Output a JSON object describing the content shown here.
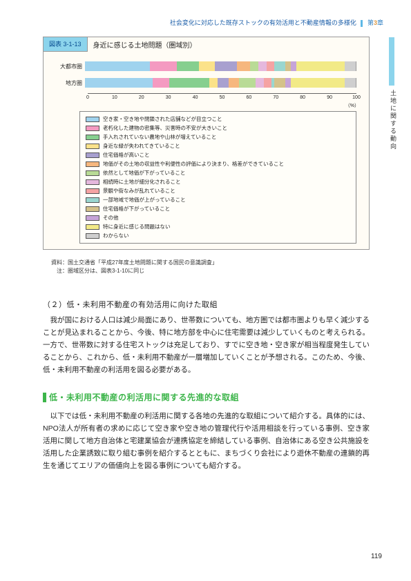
{
  "header": {
    "text": "社会変化に対応した既存ストックの有効活用と不動産情報の多様化",
    "chapter_prefix": "第",
    "chapter_num": "3",
    "chapter_suffix": "章"
  },
  "side_tab": "土地に関する動向",
  "figure": {
    "num": "図表 3-1-13",
    "title": "身近に感じる土地問題（圏域別）",
    "categories": [
      "大都市圏",
      "地方圏"
    ],
    "series": [
      {
        "label": "空き家・空き地や閉鎖された店舗などが目立つこと",
        "color": "#9fd3ee",
        "v": [
          24,
          25
        ]
      },
      {
        "label": "老朽化した建物の密集等、災害時の不安が大きいこと",
        "color": "#f49ac1",
        "v": [
          10,
          6
        ]
      },
      {
        "label": "手入れされていない農地や山林が増えていること",
        "color": "#86cf8f",
        "v": [
          8,
          15
        ]
      },
      {
        "label": "身近な緑が失われてきていること",
        "color": "#fbe28a",
        "v": [
          6,
          3
        ]
      },
      {
        "label": "住宅価格が高いこと",
        "color": "#a8a0cf",
        "v": [
          8,
          4
        ]
      },
      {
        "label": "地価がその土地の収益性や利便性の評価により決まり、格差ができていること",
        "color": "#f6b77e",
        "v": [
          5,
          4
        ]
      },
      {
        "label": "依然として地価が下がっていること",
        "color": "#b9db96",
        "v": [
          3,
          6
        ]
      },
      {
        "label": "相続時に土地が細分化されること",
        "color": "#e5b8dd",
        "v": [
          3,
          3
        ]
      },
      {
        "label": "景観や街なみが乱れていること",
        "color": "#f5a3a3",
        "v": [
          3,
          3
        ]
      },
      {
        "label": "一部地域で地価が上がっていること",
        "color": "#9ad6cf",
        "v": [
          4,
          1
        ]
      },
      {
        "label": "住宅価格が下がっていること",
        "color": "#d4c28a",
        "v": [
          2,
          4
        ]
      },
      {
        "label": "その他",
        "color": "#c6a4d8",
        "v": [
          2,
          2
        ]
      },
      {
        "label": "特に身近に感じる問題はない",
        "color": "#f2ea87",
        "v": [
          18,
          20
        ]
      },
      {
        "label": "わからない",
        "color": "#cfcfcf",
        "v": [
          4,
          4
        ]
      }
    ],
    "ticks": [
      0,
      10,
      20,
      30,
      40,
      50,
      60,
      70,
      80,
      90,
      100
    ],
    "unit": "（%）"
  },
  "source": {
    "l1": "資料：国土交通省「平成27年度土地問題に関する国民の意識調査」",
    "l2": "　注：圏域区分は、図表3-1-10に同じ"
  },
  "subhead": "（２）低・未利用不動産の有効活用に向けた取組",
  "para1": "我が国における人口は減少局面にあり、世帯数についても、地方圏では都市圏よりも早く減少することが見込まれることから、今後、特に地方部を中心に住宅需要は減少していくものと考えられる。一方で、世帯数に対する住宅ストックは充足しており、すでに空き地・空き家が相当程度発生していることから、これから、低・未利用不動産が一層増加していくことが予想される。このため、今後、低・未利用不動産の利活用を図る必要がある。",
  "green_head": "低・未利用不動産の利活用に関する先進的な取組",
  "para2": "以下では低・未利用不動産の利活用に関する各地の先進的な取組について紹介する。具体的には、NPO法人が所有者の求めに応じて空き家や空き地の管理代行や活用相談を行っている事例、空き家活用に関して地方自治体と宅建業協会が連携協定を締結している事例、自治体にある空き公共施設を活用した企業誘致に取り組む事例を紹介するとともに、まちづくり会社により遊休不動産の連鎖的再生を通じてエリアの価値向上を図る事例についても紹介する。",
  "pagenum": "119"
}
